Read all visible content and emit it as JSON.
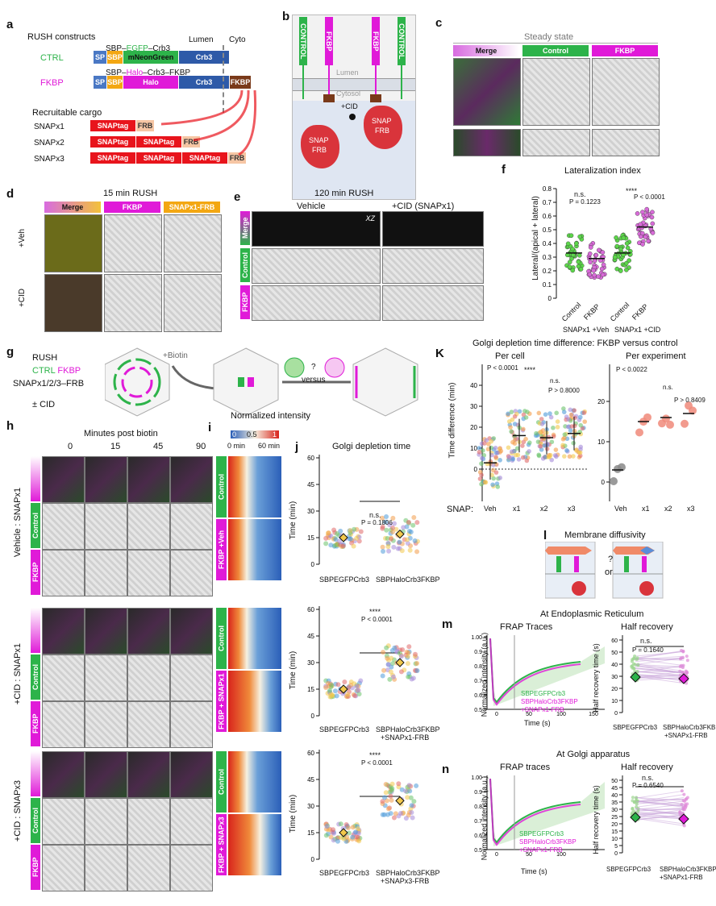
{
  "colors": {
    "green": "#2db34a",
    "magenta": "#e01ad8",
    "orange": "#f3a712",
    "red": "#e8141c",
    "blue": "#2e5aa8",
    "gray": "#888888"
  },
  "a": {
    "label": "a",
    "title": "RUSH constructs",
    "lumen": "Lumen",
    "cyto": "Cyto",
    "ctrl": {
      "name": "CTRL",
      "fusion": [
        "SBP",
        "EGFP",
        "Crb3"
      ],
      "domains": [
        "SP",
        "SBP",
        "mNeonGreen",
        "Crb3"
      ]
    },
    "fkbp": {
      "name": "FKBP",
      "fusion": [
        "SBP",
        "Halo",
        "Crb3",
        "FKBP"
      ],
      "domains": [
        "SP",
        "SBP",
        "Halo",
        "Crb3",
        "FKBP"
      ]
    },
    "cargo_title": "Recruitable cargo",
    "cargo": [
      {
        "name": "SNAPx1",
        "tags": [
          "SNAPtag",
          "FRB"
        ]
      },
      {
        "name": "SNAPx2",
        "tags": [
          "SNAPtag",
          "SNAPtag",
          "FRB"
        ]
      },
      {
        "name": "SNAPx3",
        "tags": [
          "SNAPtag",
          "SNAPtag",
          "SNAPtag",
          "FRB"
        ]
      }
    ]
  },
  "b": {
    "label": "b",
    "lumen": "Lumen",
    "cytosol": "Cytosol",
    "cid": "+CID",
    "ctrl_tag": "CONTROL",
    "fkbp_tag": "FKBP",
    "snap": [
      "SNAP",
      "FRB"
    ]
  },
  "c": {
    "label": "c",
    "header": "Steady state",
    "cols": [
      "Merge",
      "Control",
      "FKBP"
    ]
  },
  "d": {
    "label": "d",
    "header": "15 min RUSH",
    "cols": [
      "Merge",
      "FKBP",
      "SNAPx1-FRB"
    ],
    "rows": [
      "+Veh",
      "+CID"
    ]
  },
  "e": {
    "label": "e",
    "header": "120 min RUSH",
    "cols": [
      "Vehicle",
      "+CID (SNAPx1)"
    ],
    "xz": "XZ",
    "rows": [
      "Merge",
      "Control",
      "FKBP"
    ]
  },
  "f": {
    "label": "f",
    "title": "Lateralization index",
    "ylabel": "Lateral/(apical + lateral)",
    "yticks": [
      "0",
      "0.1",
      "0.2",
      "0.3",
      "0.4",
      "0.5",
      "0.6",
      "0.7",
      "0.8"
    ],
    "groups": [
      "Control",
      "FKBP",
      "Control",
      "FKBP"
    ],
    "cond": [
      "SNAPx1 +Veh",
      "SNAPx1 +CID"
    ],
    "stats": [
      {
        "sig": "n.s.",
        "p": "P = 0.1223"
      },
      {
        "sig": "****",
        "p": "P < 0.0001"
      }
    ]
  },
  "g": {
    "label": "g",
    "lines": [
      "RUSH",
      "CTRL",
      "FKBP",
      "SNAPx1/2/3–FRB",
      "± CID"
    ],
    "biotin": "+Biotin",
    "q": "?",
    "versus": "versus"
  },
  "h": {
    "label": "h",
    "header": "Minutes post biotin",
    "times": [
      "0",
      "15",
      "45",
      "90"
    ],
    "rows": [
      "Vehicle : SNAPx1",
      "+CID : SNAPx1",
      "+CID : SNAPx3"
    ],
    "channels": [
      "Control",
      "FKBP"
    ]
  },
  "i": {
    "label": "i",
    "title": "Normalized intensity",
    "scale": [
      "0",
      "0.5",
      "1"
    ],
    "time": [
      "0 min",
      "60 min"
    ],
    "rows": [
      "Control",
      "FKBP +Veh",
      "Control",
      "FKBP + SNAPx1",
      "Control",
      "FKBP + SNAPx3"
    ]
  },
  "j": {
    "label": "j",
    "title": "Golgi depletion time",
    "ylabel": "Time (min)",
    "panels": [
      {
        "sig": "n.s.",
        "p": "P = 0.1806",
        "x": [
          "SBPEGFPCrb3",
          "SBPHaloCrb3FKBP"
        ],
        "yticks": [
          "0",
          "15",
          "30",
          "45",
          "60"
        ]
      },
      {
        "sig": "****",
        "p": "P < 0.0001",
        "x": [
          "SBPEGFPCrb3",
          "SBPHaloCrb3FKBP",
          "+SNAPx1-FRB"
        ],
        "yticks": [
          "0",
          "15",
          "30",
          "45",
          "60"
        ]
      },
      {
        "sig": "****",
        "p": "P < 0.0001",
        "x": [
          "SBPEGFPCrb3",
          "SBPHaloCrb3FKBP",
          "+SNAPx3-FRB"
        ],
        "yticks": [
          "0",
          "15",
          "30",
          "45",
          "60"
        ]
      }
    ]
  },
  "k": {
    "label": "K",
    "title": "Golgi depletion time difference: FKBP versus control",
    "sub": [
      "Per cell",
      "Per experiment"
    ],
    "ylabel": "Time difference (min)",
    "snap": "SNAP:",
    "x": [
      "Veh",
      "x1",
      "x2",
      "x3"
    ],
    "yticks_cell": [
      "0",
      "10",
      "20",
      "30",
      "40"
    ],
    "yticks_exp": [
      "0",
      "10",
      "20"
    ],
    "stats_cell": [
      "P < 0.0001",
      "****",
      "n.s.",
      "P > 0.8000"
    ],
    "stats_exp": [
      "P < 0.0022",
      "n.s.",
      "P > 0.8409"
    ],
    "chart_data": {
      "type": "scatter",
      "x": [
        "Veh",
        "x1",
        "x2",
        "x3"
      ],
      "per_experiment_mean": [
        3,
        15,
        16,
        17
      ]
    }
  },
  "l": {
    "label": "l",
    "title": "Membrane diffusivity",
    "q": "?",
    "or": "or"
  },
  "m": {
    "label": "m",
    "site": "At Endoplasmic Reticulum",
    "left": "FRAP Traces",
    "right": "Half recovery",
    "ylabel": "Normalized intensity (a.u.)",
    "xlabel": "Time (s)",
    "yr": "Half recovery time (s)",
    "yticks": [
      "0.5",
      "0.6",
      "0.7",
      "0.8",
      "0.9",
      "1.00"
    ],
    "xticks": [
      "0",
      "50",
      "100",
      "150"
    ],
    "yr_ticks": [
      "0",
      "10",
      "20",
      "30",
      "40",
      "50",
      "60"
    ],
    "legend": [
      "SBPEGFPCrb3",
      "SBPHaloCrb3FKBP",
      "+SNAPx1-FRB"
    ],
    "sig": "n.s.",
    "p": "P = 0.1640",
    "x": [
      "SBPEGFPCrb3",
      "SBPHaloCrb3FKBP",
      "+SNAPx1-FRB"
    ]
  },
  "n": {
    "label": "n",
    "site": "At Golgi apparatus",
    "left": "FRAP traces",
    "right": "Half recovery",
    "ylabel": "Normalized intensity (a.u.)",
    "xlabel": "Time (s)",
    "yr": "Half recovery time (s)",
    "yticks": [
      "0.5",
      "0.6",
      "0.7",
      "0.8",
      "0.9",
      "1.00"
    ],
    "xticks": [
      "0",
      "50",
      "100"
    ],
    "yr_ticks": [
      "0",
      "5",
      "10",
      "15",
      "20",
      "25",
      "30",
      "35",
      "40",
      "45",
      "50"
    ],
    "legend": [
      "SBPEGFPCrb3",
      "SBPHaloCrb3FKBP",
      "+SNAPx1-FRB"
    ],
    "sig": "n.s.",
    "p": "P = 0.6540",
    "x": [
      "SBPEGFPCrb3",
      "SBPHaloCrb3FKBP",
      "+SNAPx1-FRB"
    ]
  }
}
